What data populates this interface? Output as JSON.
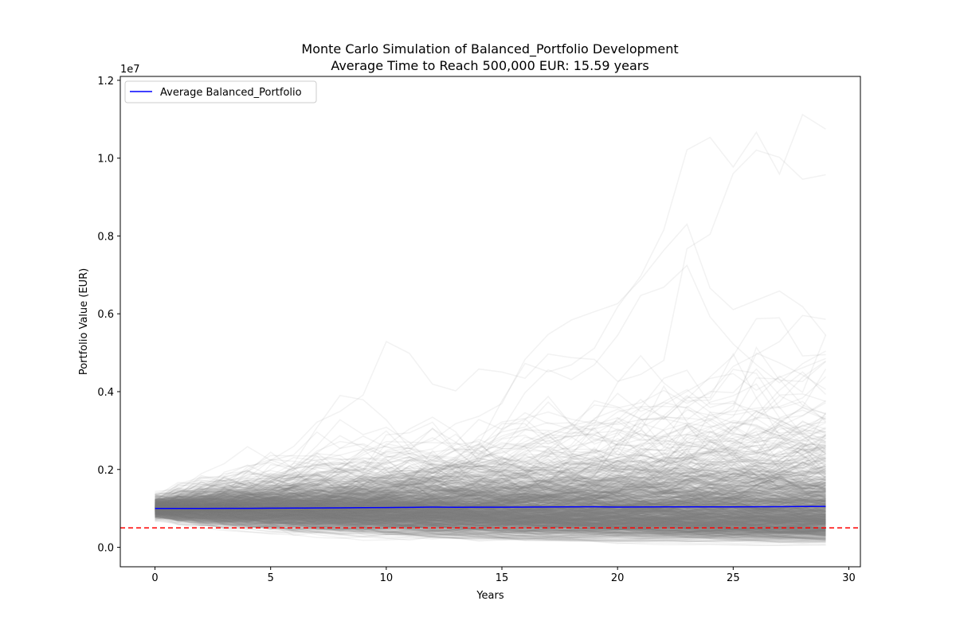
{
  "chart_data": {
    "type": "line",
    "title": "Monte Carlo Simulation of Balanced_Portfolio Development\nAverage Time to Reach 500,000 EUR: 15.59 years",
    "title_lines": [
      "Monte Carlo Simulation of Balanced_Portfolio Development",
      "Average Time to Reach 500,000 EUR: 15.59 years"
    ],
    "xlabel": "Years",
    "ylabel": "Portfolio Value (EUR)",
    "y_offset_label": "1e7",
    "xlim": [
      -1.5,
      30.5
    ],
    "ylim": [
      -500000,
      12100000
    ],
    "x_ticks": [
      0,
      5,
      10,
      15,
      20,
      25,
      30
    ],
    "y_ticks": [
      0,
      2000000,
      4000000,
      6000000,
      8000000,
      10000000,
      12000000
    ],
    "y_tick_labels": [
      "0.0",
      "0.2",
      "0.4",
      "0.6",
      "0.8",
      "1.0",
      "1.2"
    ],
    "grid": false,
    "legend_position": "top-left",
    "legend": [
      "Average Balanced_Portfolio"
    ],
    "colors": {
      "simulations": "#808080",
      "average": "#0000ff",
      "target": "#ff0000"
    },
    "series": [
      {
        "name": "Average Balanced_Portfolio",
        "x": [
          0,
          1,
          2,
          3,
          4,
          5,
          6,
          7,
          8,
          9,
          10,
          11,
          12,
          13,
          14,
          15,
          16,
          17,
          18,
          19,
          20,
          21,
          22,
          23,
          24,
          25,
          26,
          27,
          28,
          29
        ],
        "values": [
          1000000,
          998000,
          997000,
          1002000,
          1001000,
          1005000,
          1008000,
          1012000,
          1013000,
          1018000,
          1022000,
          1026000,
          1035000,
          1031000,
          1032000,
          1033000,
          1035000,
          1037000,
          1038000,
          1042000,
          1035000,
          1037000,
          1038000,
          1039000,
          1040000,
          1038000,
          1042000,
          1045000,
          1048000,
          1052000
        ]
      }
    ],
    "target_line": {
      "y": 500000
    },
    "simulations": {
      "count": 1000,
      "x_start": 0,
      "x_end": 29,
      "start_value": 1000000
    }
  }
}
